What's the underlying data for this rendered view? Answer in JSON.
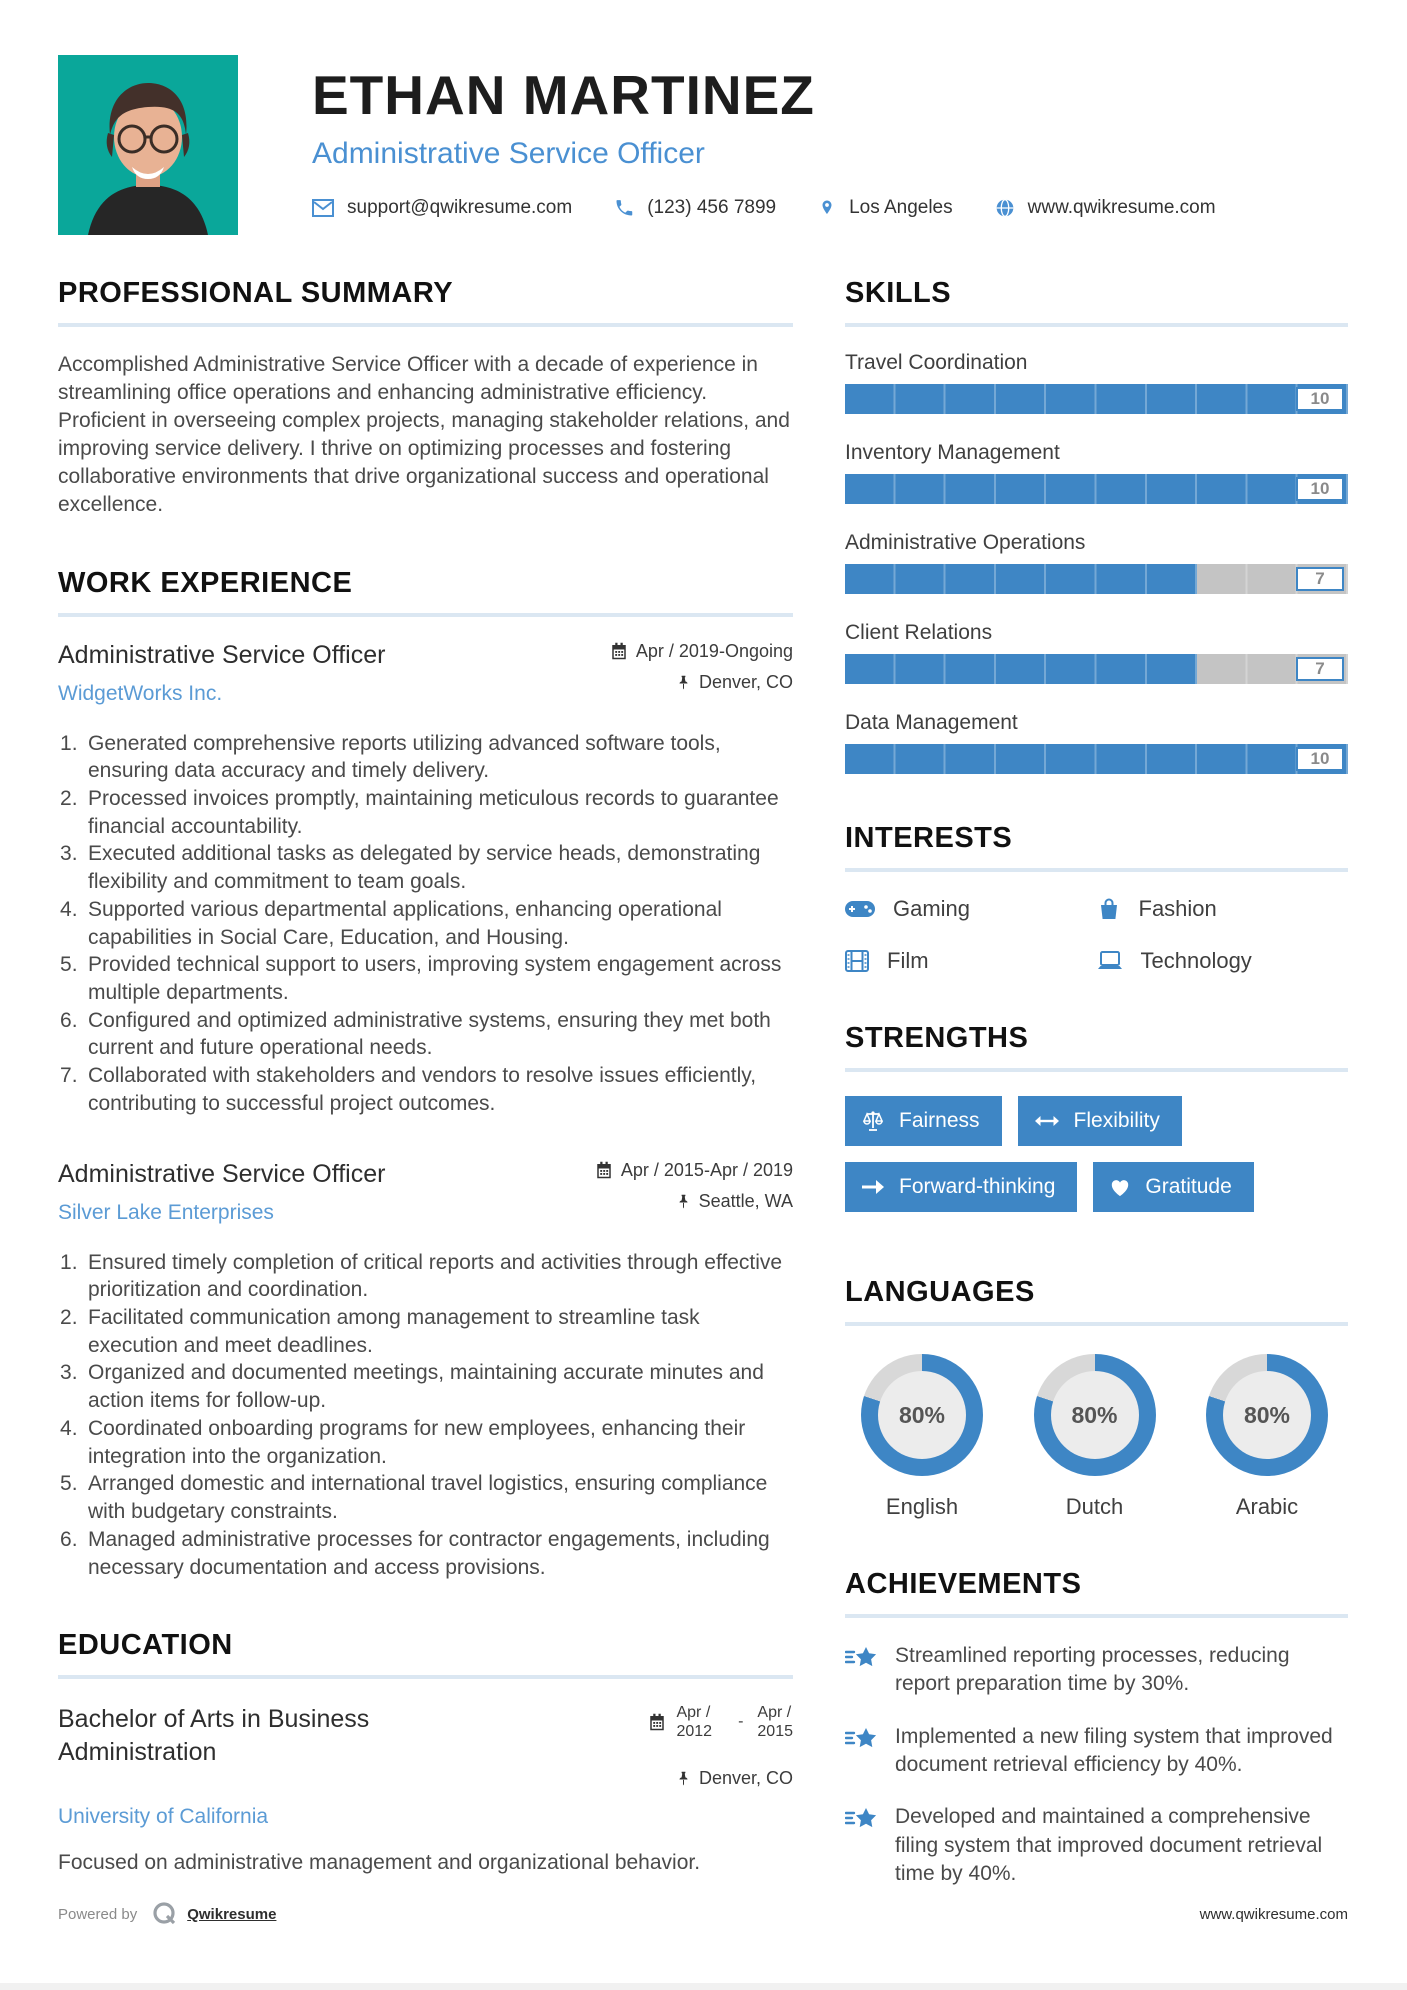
{
  "header": {
    "name": "ETHAN MARTINEZ",
    "title": "Administrative Service Officer",
    "contact": {
      "email": "support@qwikresume.com",
      "phone": "(123) 456 7899",
      "location": "Los Angeles",
      "website": "www.qwikresume.com"
    }
  },
  "summary": {
    "heading": "PROFESSIONAL SUMMARY",
    "text": "Accomplished Administrative Service Officer with a decade of experience in streamlining office operations and enhancing administrative efficiency. Proficient in overseeing complex projects, managing stakeholder relations, and improving service delivery. I thrive on optimizing processes and fostering collaborative environments that drive organizational success and operational excellence."
  },
  "work": {
    "heading": "WORK EXPERIENCE",
    "jobs": [
      {
        "title": "Administrative Service Officer",
        "company": "WidgetWorks Inc.",
        "dates": "Apr / 2019-Ongoing",
        "location": "Denver, CO",
        "bullets": [
          "Generated comprehensive reports utilizing advanced software tools, ensuring data accuracy and timely delivery.",
          "Processed invoices promptly, maintaining meticulous records to guarantee financial accountability.",
          "Executed additional tasks as delegated by service heads, demonstrating flexibility and commitment to team goals.",
          "Supported various departmental applications, enhancing operational capabilities in Social Care, Education, and Housing.",
          "Provided technical support to users, improving system engagement across multiple departments.",
          "Configured and optimized administrative systems, ensuring they met both current and future operational needs.",
          "Collaborated with stakeholders and vendors to resolve issues efficiently, contributing to successful project outcomes."
        ]
      },
      {
        "title": "Administrative Service Officer",
        "company": "Silver Lake Enterprises",
        "dates": "Apr / 2015-Apr / 2019",
        "location": "Seattle, WA",
        "bullets": [
          "Ensured timely completion of critical reports and activities through effective prioritization and coordination.",
          "Facilitated communication among management to streamline task execution and meet deadlines.",
          "Organized and documented meetings, maintaining accurate minutes and action items for follow-up.",
          "Coordinated onboarding programs for new employees, enhancing their integration into the organization.",
          "Arranged domestic and international travel logistics, ensuring compliance with budgetary constraints.",
          "Managed administrative processes for contractor engagements, including necessary documentation and access provisions."
        ]
      }
    ]
  },
  "education": {
    "heading": "EDUCATION",
    "degree": "Bachelor of Arts in Business Administration",
    "school": "University of California",
    "start": {
      "l1": "Apr /",
      "l2": "2012"
    },
    "sep": "-",
    "end": {
      "l1": "Apr /",
      "l2": "2015"
    },
    "location": "Denver, CO",
    "note": "Focused on administrative management and organizational behavior."
  },
  "skills": {
    "heading": "SKILLS",
    "max": 10,
    "items": [
      {
        "name": "Travel Coordination",
        "level": 10,
        "score": "10"
      },
      {
        "name": "Inventory Management",
        "level": 10,
        "score": "10"
      },
      {
        "name": "Administrative Operations",
        "level": 7,
        "score": "7"
      },
      {
        "name": "Client Relations",
        "level": 7,
        "score": "7"
      },
      {
        "name": "Data Management",
        "level": 10,
        "score": "10"
      }
    ]
  },
  "interests": {
    "heading": "INTERESTS",
    "items": [
      {
        "label": "Gaming",
        "icon": "gamepad-icon"
      },
      {
        "label": "Fashion",
        "icon": "shopping-bag-icon"
      },
      {
        "label": "Film",
        "icon": "film-icon"
      },
      {
        "label": "Technology",
        "icon": "laptop-icon"
      }
    ]
  },
  "strengths": {
    "heading": "STRENGTHS",
    "items": [
      {
        "label": "Fairness",
        "icon": "scales-icon"
      },
      {
        "label": "Flexibility",
        "icon": "left-right-arrow-icon"
      },
      {
        "label": "Forward-thinking",
        "icon": "right-arrow-icon"
      },
      {
        "label": "Gratitude",
        "icon": "heart-icon"
      }
    ]
  },
  "languages": {
    "heading": "LANGUAGES",
    "items": [
      {
        "name": "English",
        "percent": 80,
        "percent_label": "80%"
      },
      {
        "name": "Dutch",
        "percent": 80,
        "percent_label": "80%"
      },
      {
        "name": "Arabic",
        "percent": 80,
        "percent_label": "80%"
      }
    ]
  },
  "achievements": {
    "heading": "ACHIEVEMENTS",
    "items": [
      "Streamlined reporting processes, reducing report preparation time by 30%.",
      "Implemented a new filing system that improved document retrieval efficiency by 40%.",
      "Developed and maintained a comprehensive filing system that improved document retrieval time by 40%."
    ]
  },
  "footer": {
    "powered_by": "Powered by",
    "brand": "Qwikresume",
    "website": "www.qwikresume.com"
  },
  "colors": {
    "accent_blue": "#3e86c5",
    "link_blue": "#5b9bd5",
    "title_blue": "#4a90d2",
    "bar_gray": "#c4c4c4",
    "ring_gray": "#d8d8d8",
    "photo_teal": "#0aa79a"
  },
  "chart_data": {
    "type": "bar",
    "title": "Skills ratings (0-10)",
    "categories": [
      "Travel Coordination",
      "Inventory Management",
      "Administrative Operations",
      "Client Relations",
      "Data Management"
    ],
    "values": [
      10,
      10,
      7,
      7,
      10
    ],
    "ylim": [
      0,
      10
    ]
  }
}
